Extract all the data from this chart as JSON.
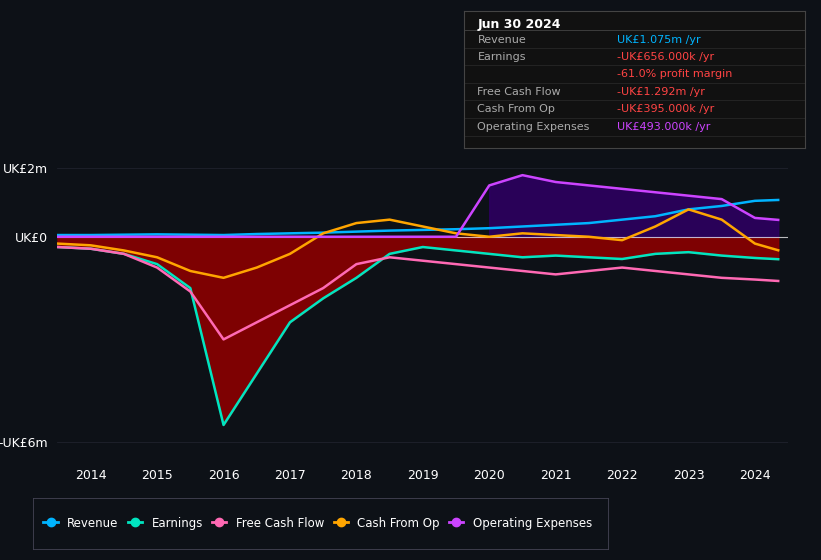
{
  "background_color": "#0d1117",
  "plot_bg_color": "#0d1117",
  "ylabel_top": "UK£2m",
  "ylabel_bottom": "-UK£6m",
  "ylabel_zero": "UK£0",
  "x_years": [
    2013.5,
    2014,
    2014.5,
    2015,
    2015.5,
    2016,
    2016.5,
    2017,
    2017.5,
    2018,
    2018.5,
    2019,
    2019.5,
    2020,
    2020.5,
    2021,
    2021.5,
    2022,
    2022.5,
    2023,
    2023.5,
    2024,
    2024.35
  ],
  "revenue": [
    0.05,
    0.05,
    0.06,
    0.07,
    0.06,
    0.05,
    0.08,
    0.1,
    0.12,
    0.15,
    0.18,
    0.2,
    0.22,
    0.25,
    0.3,
    0.35,
    0.4,
    0.5,
    0.6,
    0.8,
    0.9,
    1.05,
    1.075
  ],
  "earnings": [
    -0.3,
    -0.35,
    -0.5,
    -0.8,
    -1.5,
    -5.5,
    -4.0,
    -2.5,
    -1.8,
    -1.2,
    -0.5,
    -0.3,
    -0.4,
    -0.5,
    -0.6,
    -0.55,
    -0.6,
    -0.65,
    -0.5,
    -0.45,
    -0.55,
    -0.62,
    -0.656
  ],
  "free_cash_flow": [
    -0.3,
    -0.35,
    -0.5,
    -0.9,
    -1.6,
    -3.0,
    -2.5,
    -2.0,
    -1.5,
    -0.8,
    -0.6,
    -0.7,
    -0.8,
    -0.9,
    -1.0,
    -1.1,
    -1.0,
    -0.9,
    -1.0,
    -1.1,
    -1.2,
    -1.25,
    -1.292
  ],
  "cash_from_op": [
    -0.2,
    -0.25,
    -0.4,
    -0.6,
    -1.0,
    -1.2,
    -0.9,
    -0.5,
    0.1,
    0.4,
    0.5,
    0.3,
    0.1,
    0.0,
    0.1,
    0.05,
    0.0,
    -0.1,
    0.3,
    0.8,
    0.5,
    -0.2,
    -0.395
  ],
  "operating_expenses": [
    0.0,
    0.0,
    0.0,
    0.0,
    0.0,
    0.0,
    0.0,
    0.0,
    0.0,
    0.0,
    0.0,
    0.0,
    0.0,
    1.5,
    1.8,
    1.6,
    1.5,
    1.4,
    1.3,
    1.2,
    1.1,
    0.55,
    0.493
  ],
  "revenue_color": "#00b4ff",
  "earnings_color": "#00e5c0",
  "free_cash_flow_color": "#ff69b4",
  "cash_from_op_color": "#ffa500",
  "operating_expenses_color": "#cc44ff",
  "fill_earnings_color": "#8b0000",
  "fill_op_exp_color": "#2d0060",
  "info_box": {
    "title": "Jun 30 2024",
    "rows": [
      {
        "label": "Revenue",
        "value": "UK£1.075m /yr",
        "value_color": "#00b4ff",
        "label_color": "#aaaaaa"
      },
      {
        "label": "Earnings",
        "value": "-UK£656.000k /yr",
        "value_color": "#ff4444",
        "label_color": "#aaaaaa"
      },
      {
        "label": "",
        "value": "-61.0% profit margin",
        "value_color": "#ff4444",
        "label_color": "#aaaaaa"
      },
      {
        "label": "Free Cash Flow",
        "value": "-UK£1.292m /yr",
        "value_color": "#ff4444",
        "label_color": "#aaaaaa"
      },
      {
        "label": "Cash From Op",
        "value": "-UK£395.000k /yr",
        "value_color": "#ff4444",
        "label_color": "#aaaaaa"
      },
      {
        "label": "Operating Expenses",
        "value": "UK£493.000k /yr",
        "value_color": "#cc44ff",
        "label_color": "#aaaaaa"
      }
    ]
  },
  "legend": [
    {
      "label": "Revenue",
      "color": "#00b4ff"
    },
    {
      "label": "Earnings",
      "color": "#00e5c0"
    },
    {
      "label": "Free Cash Flow",
      "color": "#ff69b4"
    },
    {
      "label": "Cash From Op",
      "color": "#ffa500"
    },
    {
      "label": "Operating Expenses",
      "color": "#cc44ff"
    }
  ]
}
